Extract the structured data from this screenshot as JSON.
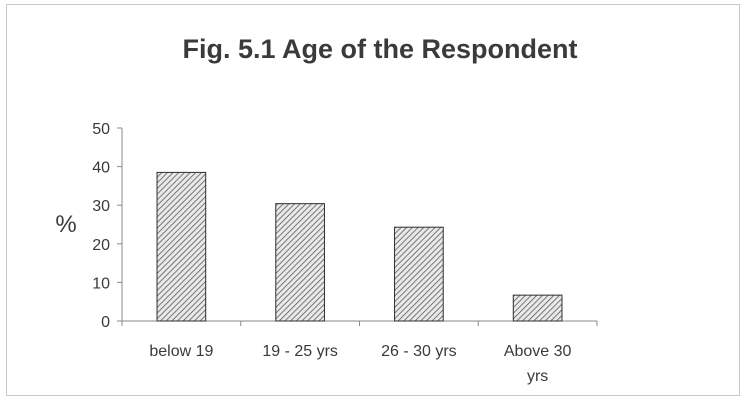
{
  "chart_data": {
    "type": "bar",
    "title": "Fig. 5.1  Age of the Respondent",
    "ylabel": "%",
    "xlabel": "",
    "categories": [
      "below 19",
      "19 - 25 yrs",
      "26 - 30 yrs",
      "Above 30 yrs"
    ],
    "values": [
      38.5,
      30.4,
      24.3,
      6.7
    ],
    "ylim": [
      0,
      50
    ],
    "yticks": [
      "0",
      "10",
      "20",
      "30",
      "40",
      "50"
    ],
    "grid": false,
    "legend": "none",
    "bar_fill": "hatched",
    "bar_color": "#555555"
  }
}
